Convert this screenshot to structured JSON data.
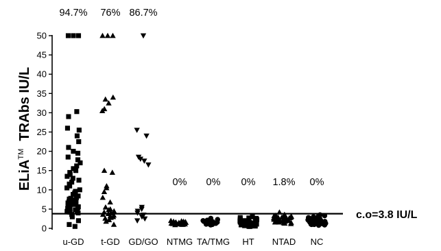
{
  "chart_data": {
    "type": "scatter",
    "ylabel_main": "ELiA",
    "ylabel_tm": "TM",
    "ylabel_rest": "  TRAbs IU/L",
    "ylim": [
      0,
      52
    ],
    "yticks": [
      0,
      5,
      10,
      15,
      20,
      25,
      30,
      35,
      40,
      45,
      50
    ],
    "cutoff": {
      "value": 3.8,
      "label": "c.o=3.8 IU/L"
    },
    "categories": [
      {
        "label": "u-GD",
        "percent": "94.7%",
        "marker": "square",
        "values": [
          50,
          50,
          50,
          30.3,
          29.0,
          26.0,
          25.5,
          24.0,
          22.5,
          21.0,
          20.0,
          19.5,
          18.5,
          17.8,
          17.0,
          16.2,
          15.5,
          15.0,
          14.5,
          14.0,
          13.5,
          13.0,
          12.5,
          12.0,
          11.5,
          11.0,
          10.5,
          10.0,
          9.6,
          9.2,
          8.8,
          8.4,
          8.0,
          7.8,
          7.6,
          7.4,
          7.2,
          7.0,
          6.8,
          6.6,
          6.4,
          6.2,
          6.0,
          5.8,
          5.6,
          5.4,
          5.2,
          5.0,
          4.8,
          4.6,
          4.4,
          4.2,
          4.0,
          3.6,
          3.0,
          2.0,
          1.0,
          0.5
        ]
      },
      {
        "label": "t-GD",
        "percent": "76%",
        "marker": "triangle-up",
        "values": [
          50,
          50,
          50,
          34.0,
          33.5,
          32.5,
          31.0,
          30.5,
          15.0,
          14.5,
          11.0,
          10.5,
          9.5,
          8.0,
          6.8,
          5.5,
          5.0,
          4.8,
          4.5,
          4.2,
          4.0,
          3.8,
          3.6,
          3.4,
          3.2,
          3.0,
          2.8,
          2.6,
          2.2,
          1.8,
          1.0
        ]
      },
      {
        "label": "GD/GO",
        "percent": "86.7%",
        "marker": "triangle-down",
        "values": [
          50,
          25.5,
          24.0,
          18.5,
          18.0,
          17.5,
          16.5,
          5.5,
          5.0,
          4.5,
          4.0,
          3.5,
          3.0,
          2.5,
          2.0
        ]
      },
      {
        "label": "NTMG",
        "percent": "0%",
        "marker": "triangle-up",
        "values": [
          2.0,
          1.9,
          1.8,
          1.7,
          1.6,
          1.5,
          1.4,
          1.3,
          1.2,
          1.1,
          1.0,
          0.9,
          1.5,
          1.2,
          1.8,
          1.4,
          1.1,
          1.6,
          1.3,
          1.0
        ]
      },
      {
        "label": "TA/TMG",
        "percent": "0%",
        "marker": "circle",
        "values": [
          2.6,
          2.3,
          2.1,
          1.9,
          1.7,
          1.5,
          1.3,
          1.1,
          1.0,
          0.9,
          1.2,
          1.6,
          1.4,
          2.0,
          1.8
        ]
      },
      {
        "label": "HT",
        "percent": "0%",
        "marker": "square",
        "values": [
          3.0,
          2.8,
          2.6,
          2.4,
          2.2,
          2.0,
          1.9,
          1.8,
          1.7,
          1.6,
          1.5,
          1.4,
          1.3,
          1.2,
          1.1,
          1.0,
          0.9,
          0.8,
          0.7,
          0.6,
          0.5,
          0.5,
          0.6,
          0.8,
          1.0,
          1.2,
          1.4,
          1.6,
          1.8,
          2.0,
          2.3,
          2.7,
          0.7,
          0.9,
          1.1,
          1.3,
          1.5,
          1.7
        ]
      },
      {
        "label": "NTAD",
        "percent": "1.8%",
        "marker": "triangle-up",
        "values": [
          4.2,
          3.6,
          3.4,
          3.2,
          3.0,
          2.9,
          2.8,
          2.7,
          2.6,
          2.5,
          2.4,
          2.3,
          2.2,
          2.1,
          2.0,
          1.9,
          1.8,
          1.7,
          1.6,
          1.5,
          1.4,
          1.3,
          1.2,
          2.5,
          2.2,
          2.8,
          3.1,
          2.0,
          1.8,
          2.6,
          2.4,
          2.9,
          1.6,
          2.3,
          2.1,
          2.7,
          3.3,
          1.9
        ]
      },
      {
        "label": "NC",
        "percent": "0%",
        "marker": "circle",
        "values": [
          3.5,
          3.3,
          3.0,
          2.8,
          2.6,
          2.5,
          2.4,
          2.3,
          2.2,
          2.1,
          2.0,
          1.9,
          1.8,
          1.7,
          1.6,
          1.5,
          1.4,
          1.3,
          1.2,
          1.1,
          1.0,
          0.9,
          0.8,
          2.7,
          2.2,
          1.8,
          1.5,
          2.9,
          2.4,
          2.0,
          1.6,
          1.3,
          3.1,
          2.6,
          1.9,
          1.4,
          1.0,
          2.1
        ]
      }
    ]
  }
}
